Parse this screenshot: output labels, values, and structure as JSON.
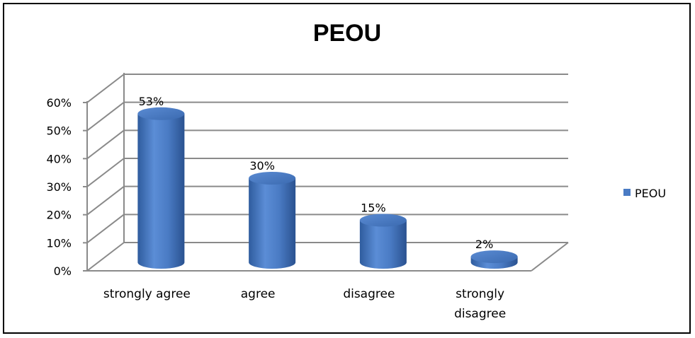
{
  "chart_data": {
    "type": "bar",
    "title": "PEOU",
    "categories": [
      [
        "strongly agree"
      ],
      [
        "agree"
      ],
      [
        "disagree"
      ],
      [
        "strongly",
        "disagree"
      ]
    ],
    "series": [
      {
        "name": "PEOU",
        "values": [
          53,
          30,
          15,
          2
        ],
        "labels": [
          "53%",
          "30%",
          "15%",
          "2%"
        ]
      }
    ],
    "yticks": [
      "0%",
      "10%",
      "20%",
      "30%",
      "40%",
      "50%",
      "60%"
    ],
    "ylim": [
      0,
      60
    ],
    "grid": true,
    "legend": "right",
    "bar_color": "#4a7bc4"
  }
}
